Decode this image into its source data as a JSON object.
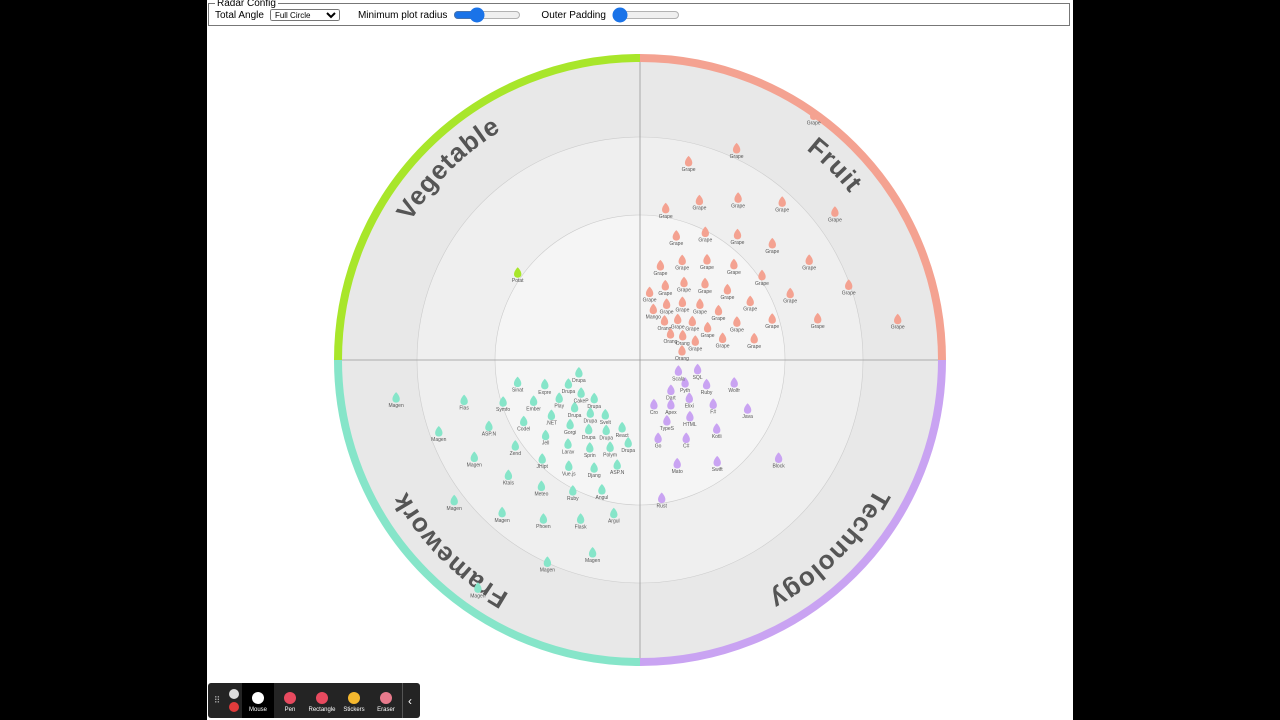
{
  "config": {
    "legend": "Radar Config",
    "total_angle_label": "Total Angle",
    "total_angle_value": "Full Circle",
    "min_radius_label": "Minimum plot radius",
    "outer_padding_label": "Outer Padding"
  },
  "radar": {
    "quadrants": [
      {
        "name": "Fruit",
        "color": "#f4a291",
        "blips": [
          "Grape",
          "Grape",
          "Grape",
          "Grape",
          "Grape",
          "Grape",
          "Grape",
          "Grape",
          "Grape",
          "Grape",
          "Grape",
          "Grape",
          "Grape",
          "Grape",
          "Grape",
          "Grape",
          "Grape",
          "Grape",
          "Grape",
          "Grape",
          "Grape",
          "Grape",
          "Grape",
          "Grape",
          "Grape",
          "Grape",
          "Grape",
          "Grape",
          "Grape",
          "Grape",
          "Grape",
          "Grape",
          "Grape",
          "Grape",
          "Grape",
          "Grape",
          "Grape",
          "Grape",
          "Grape",
          "Grape",
          "Mango",
          "Orang",
          "Orang",
          "Orang",
          "Orang"
        ]
      },
      {
        "name": "Technology",
        "color": "#c9a3f2",
        "blips": [
          "Block",
          "Rust",
          "Swift",
          "Java",
          "Mato",
          "Kotli",
          "Wolfr",
          "C#",
          "F#",
          "Go",
          "HTML",
          "Ruby",
          "TypeS",
          "Elixi",
          "SQL",
          "Apex",
          "Pyth",
          "Cro",
          "Dart",
          "Scala"
        ]
      },
      {
        "name": "Framework",
        "color": "#86e5c9",
        "blips": [
          "Magen",
          "Magen",
          "Magen",
          "Magen",
          "Magen",
          "Magen",
          "Magen",
          "Magen",
          "Phoen",
          "Flas",
          "Ktals",
          "Flask",
          "ASP.N",
          "Meteo",
          "Argul",
          "Zend",
          "Ruby",
          "Symfo",
          "JHipt",
          "Angul",
          "Codel",
          "Vue.js",
          "Sinat",
          "Jell",
          "Djang",
          "Ember",
          "Larav",
          "ASP.N",
          ".NET",
          "Sprin",
          "Expre",
          "Gorgi",
          "Polym",
          "Play",
          "Drupa",
          "Drupa",
          "Drupa",
          "Drupa",
          "Drupa",
          "Drupa",
          "React",
          "CakeP",
          "Svelt",
          "Drupa",
          "Drupa"
        ]
      },
      {
        "name": "Vegetable",
        "color": "#a8e62a",
        "blips": [
          "Potat"
        ]
      }
    ]
  },
  "toolbar": {
    "tools": [
      "Mouse",
      "Pen",
      "Rectangle",
      "Stickers",
      "Eraser"
    ]
  }
}
